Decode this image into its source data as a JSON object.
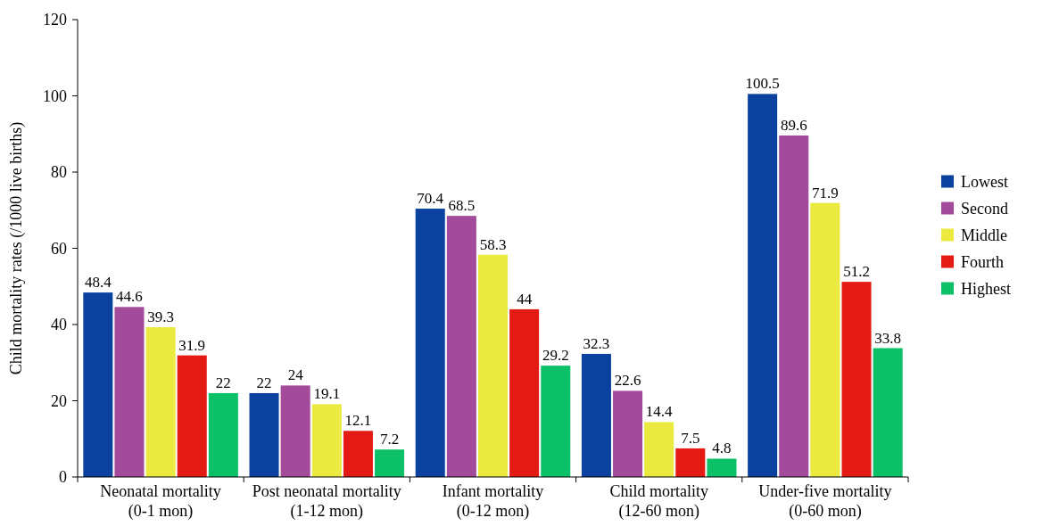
{
  "chart_data": {
    "type": "bar",
    "ylabel": "Child mortality rates (/1000 live births)",
    "categories": [
      "Neonatal mortality\n(0-1 mon)",
      "Post neonatal mortality\n(1-12 mon)",
      "Infant mortality\n(0-12 mon)",
      "Child mortality\n(12-60 mon)",
      "Under-five mortality\n(0-60 mon)"
    ],
    "series": [
      {
        "name": "Lowest",
        "color": "#0b429f",
        "values": [
          48.4,
          22,
          70.4,
          32.3,
          100.5
        ]
      },
      {
        "name": "Second",
        "color": "#a34a9a",
        "values": [
          44.6,
          24,
          68.5,
          22.6,
          89.6
        ]
      },
      {
        "name": "Middle",
        "color": "#eaea40",
        "values": [
          39.3,
          19.1,
          58.3,
          14.4,
          71.9
        ]
      },
      {
        "name": "Fourth",
        "color": "#e31b14",
        "values": [
          31.9,
          12.1,
          44,
          7.5,
          51.2
        ]
      },
      {
        "name": "Highest",
        "color": "#0cc068",
        "values": [
          22,
          7.2,
          29.2,
          4.8,
          33.8
        ]
      }
    ],
    "ylim": [
      0,
      120
    ],
    "yticks": [
      0,
      20,
      40,
      60,
      80,
      100,
      120
    ],
    "data_labels": true,
    "legend": "right",
    "grid": false
  }
}
